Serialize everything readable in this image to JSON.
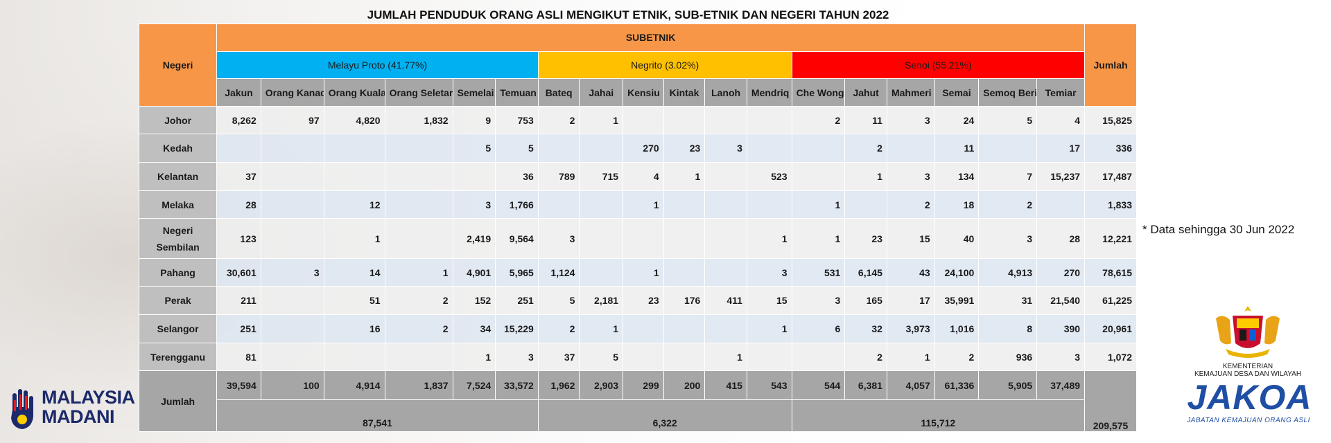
{
  "title": "JUMLAH PENDUDUK ORANG ASLI MENGIKUT ETNIK, SUB-ETNIK DAN NEGERI TAHUN 2022",
  "headers": {
    "negeri": "Negeri",
    "subetnik": "SUBETNIK",
    "jumlah": "Jumlah",
    "groups": [
      "Melayu Proto (41.77%)",
      "Negrito (3.02%)",
      "Senoi (55.21%)"
    ],
    "sub": [
      "Jakun",
      "Orang Kanaq",
      "Orang Kuala",
      "Orang Seletar",
      "Semelai",
      "Temuan",
      "Bateq",
      "Jahai",
      "Kensiu",
      "Kintak",
      "Lanoh",
      "Mendriq",
      "Che Wong",
      "Jahut",
      "Mahmeri",
      "Semai",
      "Semoq Beri",
      "Temiar"
    ]
  },
  "rows": [
    {
      "state": "Johor",
      "values": [
        "8,262",
        "97",
        "4,820",
        "1,832",
        "9",
        "753",
        "2",
        "1",
        "",
        "",
        "",
        "",
        "2",
        "11",
        "3",
        "24",
        "5",
        "4"
      ],
      "total": "15,825"
    },
    {
      "state": "Kedah",
      "values": [
        "",
        "",
        "",
        "",
        "5",
        "5",
        "",
        "",
        "270",
        "23",
        "3",
        "",
        "",
        "2",
        "",
        "11",
        "",
        "17"
      ],
      "total": "336"
    },
    {
      "state": "Kelantan",
      "values": [
        "37",
        "",
        "",
        "",
        "",
        "36",
        "789",
        "715",
        "4",
        "1",
        "",
        "523",
        "",
        "1",
        "3",
        "134",
        "7",
        "15,237"
      ],
      "total": "17,487"
    },
    {
      "state": "Melaka",
      "values": [
        "28",
        "",
        "12",
        "",
        "3",
        "1,766",
        "",
        "",
        "1",
        "",
        "",
        "",
        "1",
        "",
        "2",
        "18",
        "2",
        ""
      ],
      "total": "1,833"
    },
    {
      "state": "Negeri Sembilan",
      "values": [
        "123",
        "",
        "1",
        "",
        "2,419",
        "9,564",
        "3",
        "",
        "",
        "",
        "",
        "1",
        "1",
        "23",
        "15",
        "40",
        "3",
        "28"
      ],
      "total": "12,221"
    },
    {
      "state": "Pahang",
      "values": [
        "30,601",
        "3",
        "14",
        "1",
        "4,901",
        "5,965",
        "1,124",
        "",
        "1",
        "",
        "",
        "3",
        "531",
        "6,145",
        "43",
        "24,100",
        "4,913",
        "270"
      ],
      "total": "78,615"
    },
    {
      "state": "Perak",
      "values": [
        "211",
        "",
        "51",
        "2",
        "152",
        "251",
        "5",
        "2,181",
        "23",
        "176",
        "411",
        "15",
        "3",
        "165",
        "17",
        "35,991",
        "31",
        "21,540"
      ],
      "total": "61,225"
    },
    {
      "state": "Selangor",
      "values": [
        "251",
        "",
        "16",
        "2",
        "34",
        "15,229",
        "2",
        "1",
        "",
        "",
        "",
        "1",
        "6",
        "32",
        "3,973",
        "1,016",
        "8",
        "390"
      ],
      "total": "20,961"
    },
    {
      "state": "Terengganu",
      "values": [
        "81",
        "",
        "",
        "",
        "1",
        "3",
        "37",
        "5",
        "",
        "",
        "1",
        "",
        "",
        "2",
        "1",
        "2",
        "936",
        "3"
      ],
      "total": "1,072"
    }
  ],
  "totals": {
    "label": "Jumlah",
    "values": [
      "39,594",
      "100",
      "4,914",
      "1,837",
      "7,524",
      "33,572",
      "1,962",
      "2,903",
      "299",
      "200",
      "415",
      "543",
      "544",
      "6,381",
      "4,057",
      "61,336",
      "5,905",
      "37,489"
    ],
    "groups": [
      "87,541",
      "6,322",
      "115,712"
    ],
    "grand": "209,575"
  },
  "note": "* Data sehingga 30 Jun 2022",
  "logos": {
    "madani": "MALAYSIA MADANI",
    "madani_lines": [
      "MALAYSIA",
      "MADANI"
    ],
    "kementerian": [
      "KEMENTERIAN",
      "KEMAJUAN DESA DAN WILAYAH"
    ],
    "jakoa": "JAKOA",
    "jakoa_sub": "JABATAN KEMAJUAN ORANG ASLI"
  },
  "colors": {
    "header_orange": "#f79646",
    "melayu_proto": "#00b0f0",
    "negrito": "#ffc000",
    "senoi": "#ff0000"
  }
}
